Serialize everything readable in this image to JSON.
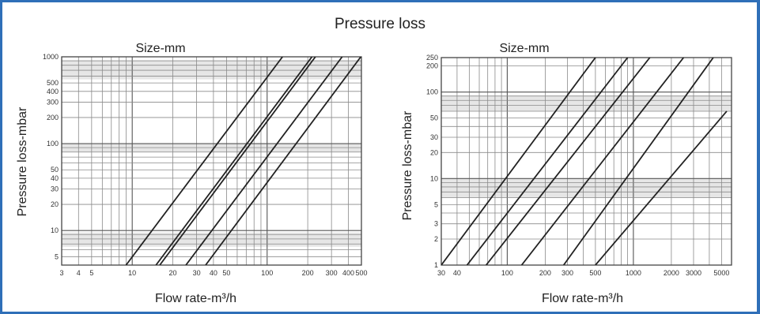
{
  "title": "Pressure loss",
  "chart_data": [
    {
      "type": "line",
      "title": "Size-mm",
      "xlabel": "Flow rate-m³/h",
      "ylabel": "Pressure loss-mbar",
      "x_scale": "log",
      "y_scale": "log",
      "xlim": [
        3,
        500
      ],
      "ylim": [
        4,
        1000
      ],
      "x_tick_labels": [
        "3",
        "4",
        "5",
        "10",
        "20",
        "30",
        "40",
        "50",
        "100",
        "200",
        "300",
        "400",
        "500"
      ],
      "y_tick_labels": [
        "1000",
        "500",
        "400",
        "300",
        "200",
        "100",
        "50",
        "40",
        "30",
        "20",
        "10",
        "5"
      ],
      "series": [
        {
          "name": "",
          "x": [
            9,
            130
          ],
          "y": [
            4,
            1000
          ]
        },
        {
          "name": "",
          "x": [
            15,
            215
          ],
          "y": [
            4,
            1000
          ]
        },
        {
          "name": "",
          "x": [
            16,
            228
          ],
          "y": [
            4,
            1000
          ]
        },
        {
          "name": "",
          "x": [
            25,
            360
          ],
          "y": [
            4,
            1000
          ]
        },
        {
          "name": "",
          "x": [
            35,
            495
          ],
          "y": [
            4,
            1000
          ]
        }
      ],
      "grid": true
    },
    {
      "type": "line",
      "title": "Size-mm",
      "xlabel": "Flow rate-m³/h",
      "ylabel": "Pressure loss-mbar",
      "x_scale": "log",
      "y_scale": "log",
      "xlim": [
        30,
        6000
      ],
      "ylim": [
        1,
        250
      ],
      "x_tick_labels": [
        "30",
        "40",
        "100",
        "200",
        "300",
        "500",
        "1000",
        "2000",
        "3000",
        "5000"
      ],
      "y_tick_labels": [
        "250",
        "200",
        "100",
        "50",
        "30",
        "20",
        "10",
        "5",
        "3",
        "2",
        "1"
      ],
      "series": [
        {
          "name": "",
          "x": [
            30,
            500
          ],
          "y": [
            1,
            250
          ]
        },
        {
          "name": "",
          "x": [
            48,
            900
          ],
          "y": [
            1,
            250
          ]
        },
        {
          "name": "",
          "x": [
            68,
            1350
          ],
          "y": [
            1,
            250
          ]
        },
        {
          "name": "",
          "x": [
            130,
            2500
          ],
          "y": [
            1,
            250
          ]
        },
        {
          "name": "",
          "x": [
            280,
            4300
          ],
          "y": [
            1,
            250
          ]
        },
        {
          "name": "",
          "x": [
            500,
            5500
          ],
          "y": [
            1,
            60
          ]
        }
      ],
      "grid": true
    }
  ]
}
